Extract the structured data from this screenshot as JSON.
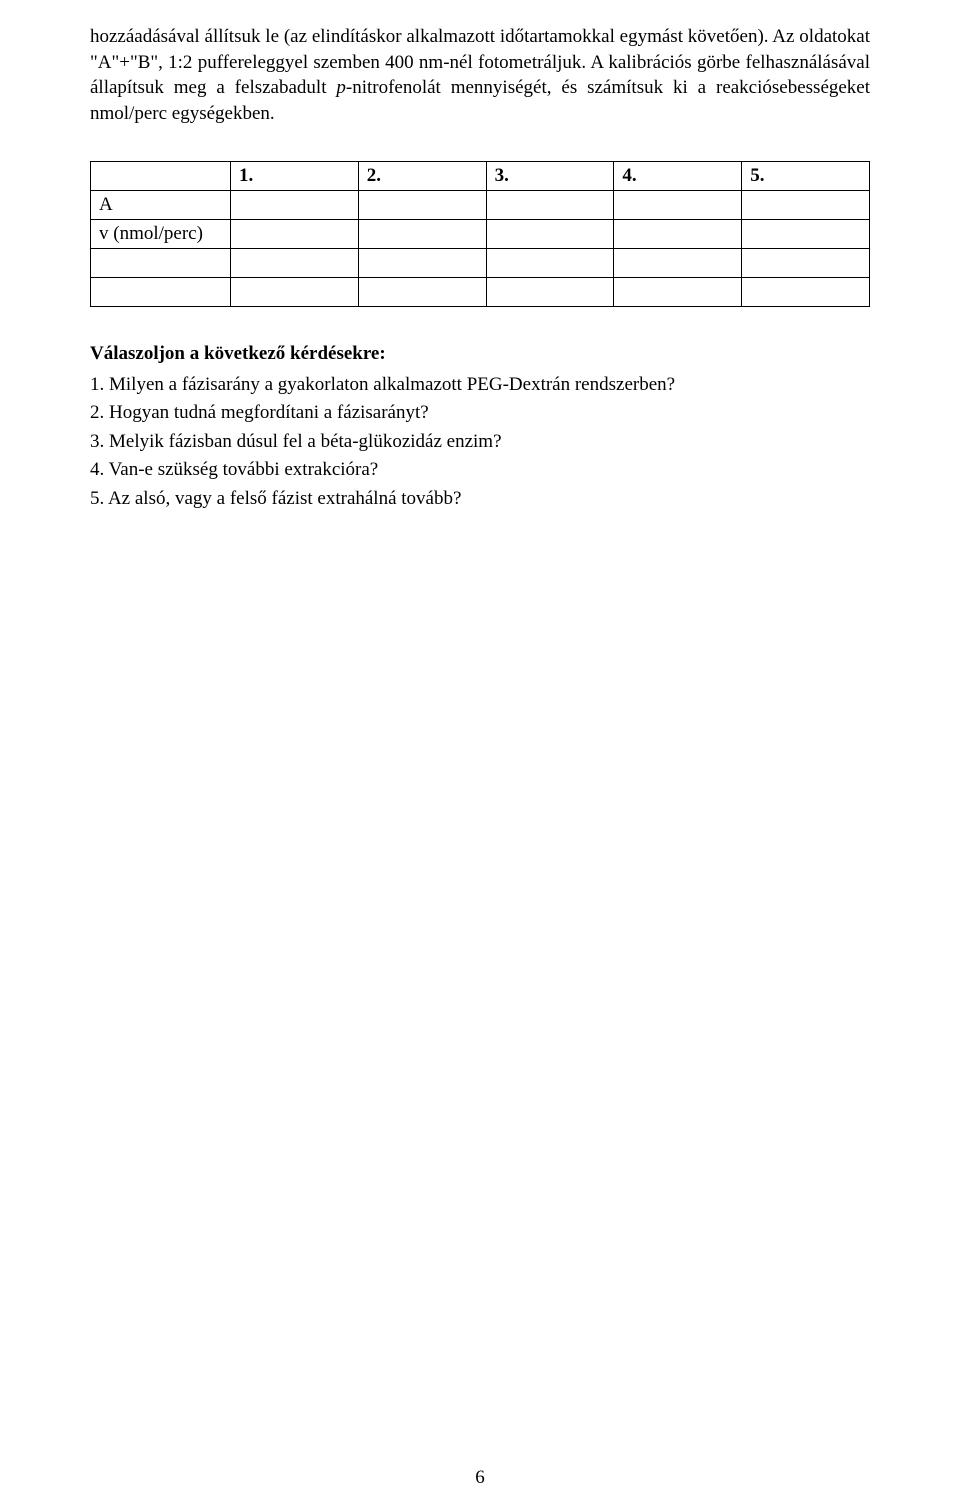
{
  "intro": {
    "line1_a": "hozzáadásával állítsuk le (az elindításkor alkalmazott időtartamokkal egymást követően). Az",
    "line2_a": "oldatokat \"A\"+\"B\", 1:2 puffereleggyel szemben 400 nm-nél fotometráljuk. A kalibrációs",
    "line3_a": "görbe felhasználásával állapítsuk meg a felszabadult ",
    "line3_i": "p",
    "line3_b": "-nitrofenolát mennyiségét, és számítsuk",
    "line4_a": "ki a reakciósebességeket nmol/perc egységekben."
  },
  "table": {
    "headers": [
      "1.",
      "2.",
      "3.",
      "4.",
      "5."
    ],
    "row_labels": [
      "A",
      "v (nmol/perc)"
    ],
    "extra_rows": 2
  },
  "questions": {
    "heading": "Válaszoljon a következő kérdésekre:",
    "items": [
      "1. Milyen a fázisarány a gyakorlaton alkalmazott PEG-Dextrán rendszerben?",
      "2. Hogyan tudná megfordítani a fázisarányt?",
      "3. Melyik fázisban dúsul fel a béta-glükozidáz enzim?",
      "4. Van-e szükség további extrakcióra?",
      "5. Az alsó, vagy a felső fázist extrahálná tovább?"
    ]
  },
  "page_number": "6"
}
